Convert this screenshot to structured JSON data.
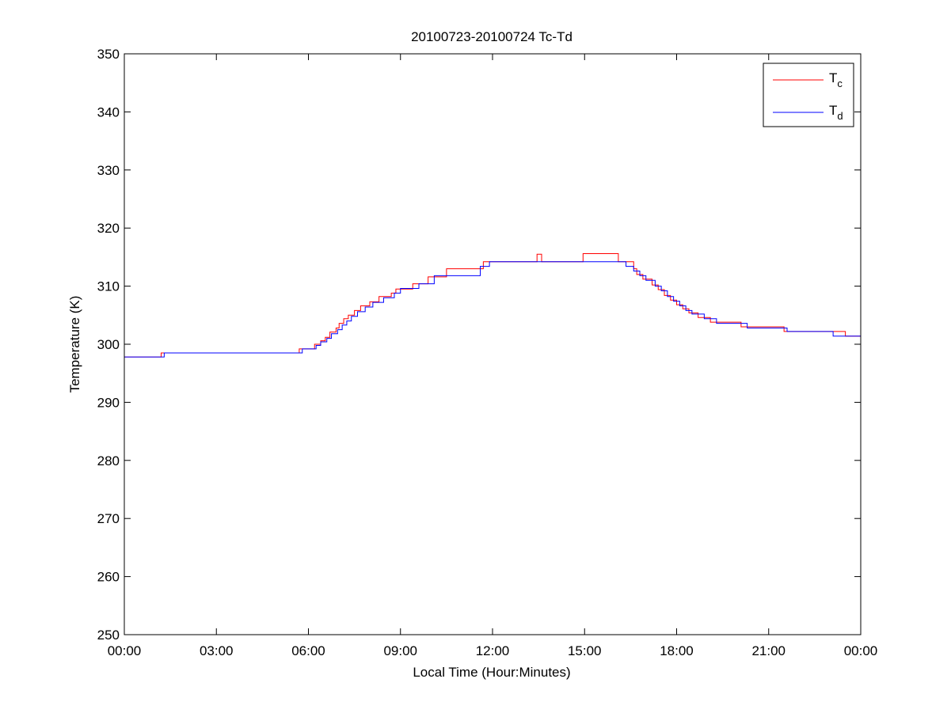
{
  "chart_data": {
    "type": "line",
    "title": "20100723-20100724 Tc-Td",
    "xlabel": "Local Time (Hour:Minutes)",
    "ylabel": "Temperature (K)",
    "xlim": [
      0,
      24
    ],
    "ylim": [
      250,
      350
    ],
    "x_ticks": [
      0,
      3,
      6,
      9,
      12,
      15,
      18,
      21,
      24
    ],
    "x_tick_labels": [
      "00:00",
      "03:00",
      "06:00",
      "09:00",
      "12:00",
      "15:00",
      "18:00",
      "21:00",
      "00:00"
    ],
    "y_ticks": [
      250,
      260,
      270,
      280,
      290,
      300,
      310,
      320,
      330,
      340,
      350
    ],
    "y_tick_labels": [
      "250",
      "260",
      "270",
      "280",
      "290",
      "300",
      "310",
      "320",
      "330",
      "340",
      "350"
    ],
    "grid": false,
    "legend": {
      "position": "top-right"
    },
    "series": [
      {
        "name": "Tc",
        "name_base": "T",
        "name_sub": "c",
        "color": "#ff0000",
        "step": true,
        "points": [
          [
            0.0,
            297.8
          ],
          [
            1.15,
            297.8
          ],
          [
            1.2,
            298.5
          ],
          [
            5.6,
            298.5
          ],
          [
            5.7,
            299.2
          ],
          [
            6.1,
            299.2
          ],
          [
            6.2,
            300.0
          ],
          [
            6.4,
            300.6
          ],
          [
            6.55,
            301.2
          ],
          [
            6.7,
            302.1
          ],
          [
            6.9,
            302.8
          ],
          [
            7.0,
            303.6
          ],
          [
            7.15,
            304.4
          ],
          [
            7.3,
            305.0
          ],
          [
            7.5,
            305.8
          ],
          [
            7.7,
            306.6
          ],
          [
            8.0,
            307.3
          ],
          [
            8.3,
            308.2
          ],
          [
            8.7,
            308.8
          ],
          [
            8.85,
            309.5
          ],
          [
            9.3,
            309.5
          ],
          [
            9.4,
            310.4
          ],
          [
            9.8,
            310.4
          ],
          [
            9.9,
            311.6
          ],
          [
            10.4,
            311.6
          ],
          [
            10.5,
            313.0
          ],
          [
            11.6,
            313.0
          ],
          [
            11.7,
            314.2
          ],
          [
            13.4,
            314.2
          ],
          [
            13.45,
            315.5
          ],
          [
            13.55,
            315.5
          ],
          [
            13.6,
            314.2
          ],
          [
            14.9,
            314.2
          ],
          [
            14.95,
            315.6
          ],
          [
            16.0,
            315.6
          ],
          [
            16.1,
            314.2
          ],
          [
            16.5,
            314.2
          ],
          [
            16.6,
            313.0
          ],
          [
            16.7,
            312.0
          ],
          [
            16.9,
            311.2
          ],
          [
            17.2,
            310.2
          ],
          [
            17.4,
            309.4
          ],
          [
            17.6,
            308.4
          ],
          [
            17.8,
            307.6
          ],
          [
            18.0,
            306.8
          ],
          [
            18.2,
            306.1
          ],
          [
            18.4,
            305.4
          ],
          [
            18.7,
            304.6
          ],
          [
            19.1,
            303.8
          ],
          [
            20.0,
            303.8
          ],
          [
            20.1,
            303.0
          ],
          [
            21.4,
            303.0
          ],
          [
            21.5,
            302.2
          ],
          [
            23.4,
            302.2
          ],
          [
            23.5,
            301.4
          ],
          [
            24.0,
            301.4
          ]
        ]
      },
      {
        "name": "Td",
        "name_base": "T",
        "name_sub": "d",
        "color": "#0000ff",
        "step": true,
        "points": [
          [
            0.0,
            297.8
          ],
          [
            1.25,
            297.8
          ],
          [
            1.3,
            298.5
          ],
          [
            5.7,
            298.5
          ],
          [
            5.8,
            299.2
          ],
          [
            6.2,
            299.2
          ],
          [
            6.25,
            299.8
          ],
          [
            6.4,
            300.4
          ],
          [
            6.6,
            301.0
          ],
          [
            6.75,
            301.8
          ],
          [
            6.95,
            302.5
          ],
          [
            7.1,
            303.3
          ],
          [
            7.25,
            304.0
          ],
          [
            7.4,
            304.8
          ],
          [
            7.6,
            305.6
          ],
          [
            7.85,
            306.4
          ],
          [
            8.1,
            307.2
          ],
          [
            8.45,
            308.0
          ],
          [
            8.8,
            308.8
          ],
          [
            9.0,
            309.6
          ],
          [
            9.5,
            309.6
          ],
          [
            9.6,
            310.4
          ],
          [
            10.0,
            310.4
          ],
          [
            10.1,
            311.8
          ],
          [
            11.5,
            311.8
          ],
          [
            11.6,
            313.4
          ],
          [
            11.8,
            313.4
          ],
          [
            11.9,
            314.2
          ],
          [
            16.3,
            314.2
          ],
          [
            16.35,
            313.4
          ],
          [
            16.5,
            313.4
          ],
          [
            16.6,
            312.6
          ],
          [
            16.8,
            311.8
          ],
          [
            17.0,
            311.0
          ],
          [
            17.3,
            310.0
          ],
          [
            17.5,
            309.2
          ],
          [
            17.7,
            308.2
          ],
          [
            17.9,
            307.4
          ],
          [
            18.1,
            306.6
          ],
          [
            18.3,
            305.8
          ],
          [
            18.5,
            305.2
          ],
          [
            18.9,
            304.4
          ],
          [
            19.3,
            303.6
          ],
          [
            20.2,
            303.6
          ],
          [
            20.3,
            302.8
          ],
          [
            21.5,
            302.8
          ],
          [
            21.6,
            302.2
          ],
          [
            23.0,
            302.2
          ],
          [
            23.1,
            301.4
          ],
          [
            24.0,
            301.4
          ]
        ]
      }
    ]
  }
}
